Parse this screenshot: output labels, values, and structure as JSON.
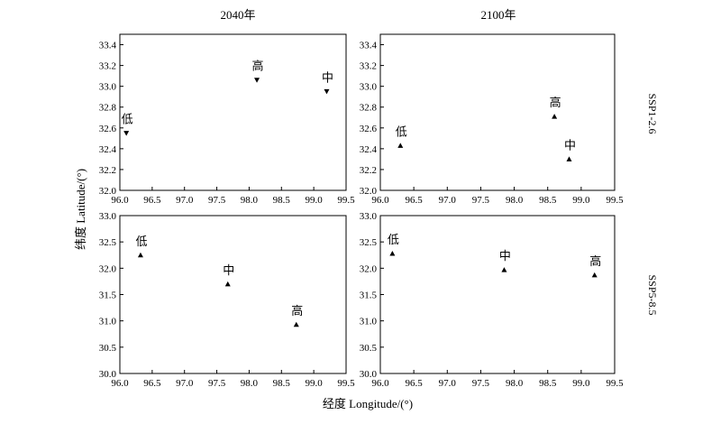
{
  "figure": {
    "column_titles": [
      "2040年",
      "2100年"
    ],
    "row_titles": [
      "SSP1-2.6",
      "SSP5-8.5"
    ],
    "xlabel": "经度 Longitude/(°)",
    "ylabel": "纬度 Latitude/(°)"
  },
  "chart_data": [
    {
      "type": "scatter",
      "panel": "2040年 · SSP1-2.6",
      "marker": "down-triangle",
      "xlim": [
        96.0,
        99.5
      ],
      "ylim": [
        32.0,
        33.5
      ],
      "x_ticks": [
        96.0,
        96.5,
        97.0,
        97.5,
        98.0,
        98.5,
        99.0,
        99.5
      ],
      "y_ticks": [
        32.0,
        32.2,
        32.4,
        32.6,
        32.8,
        33.0,
        33.2,
        33.4
      ],
      "points": [
        {
          "label": "低",
          "x": 96.1,
          "y": 32.55
        },
        {
          "label": "高",
          "x": 98.12,
          "y": 33.06
        },
        {
          "label": "中",
          "x": 99.2,
          "y": 32.95
        }
      ]
    },
    {
      "type": "scatter",
      "panel": "2100年 · SSP1-2.6",
      "marker": "up-triangle",
      "xlim": [
        96.0,
        99.5
      ],
      "ylim": [
        32.0,
        33.5
      ],
      "x_ticks": [
        96.0,
        96.5,
        97.0,
        97.5,
        98.0,
        98.5,
        99.0,
        99.5
      ],
      "y_ticks": [
        32.0,
        32.2,
        32.4,
        32.6,
        32.8,
        33.0,
        33.2,
        33.4
      ],
      "points": [
        {
          "label": "低",
          "x": 96.3,
          "y": 32.43
        },
        {
          "label": "高",
          "x": 98.6,
          "y": 32.71
        },
        {
          "label": "中",
          "x": 98.82,
          "y": 32.3
        }
      ]
    },
    {
      "type": "scatter",
      "panel": "2040年 · SSP5-8.5",
      "marker": "up-triangle",
      "xlim": [
        96.0,
        99.5
      ],
      "ylim": [
        30.0,
        33.0
      ],
      "x_ticks": [
        96.0,
        96.5,
        97.0,
        97.5,
        98.0,
        98.5,
        99.0,
        99.5
      ],
      "y_ticks": [
        30.0,
        30.5,
        31.0,
        31.5,
        32.0,
        32.5,
        33.0
      ],
      "points": [
        {
          "label": "低",
          "x": 96.32,
          "y": 32.25
        },
        {
          "label": "中",
          "x": 97.67,
          "y": 31.7
        },
        {
          "label": "高",
          "x": 98.73,
          "y": 30.93
        }
      ]
    },
    {
      "type": "scatter",
      "panel": "2100年 · SSP5-8.5",
      "marker": "up-triangle",
      "xlim": [
        96.0,
        99.5
      ],
      "ylim": [
        30.0,
        33.0
      ],
      "x_ticks": [
        96.0,
        96.5,
        97.0,
        97.5,
        98.0,
        98.5,
        99.0,
        99.5
      ],
      "y_ticks": [
        30.0,
        30.5,
        31.0,
        31.5,
        32.0,
        32.5,
        33.0
      ],
      "points": [
        {
          "label": "低",
          "x": 96.18,
          "y": 32.28
        },
        {
          "label": "中",
          "x": 97.85,
          "y": 31.97
        },
        {
          "label": "高",
          "x": 99.2,
          "y": 31.87
        }
      ]
    }
  ]
}
